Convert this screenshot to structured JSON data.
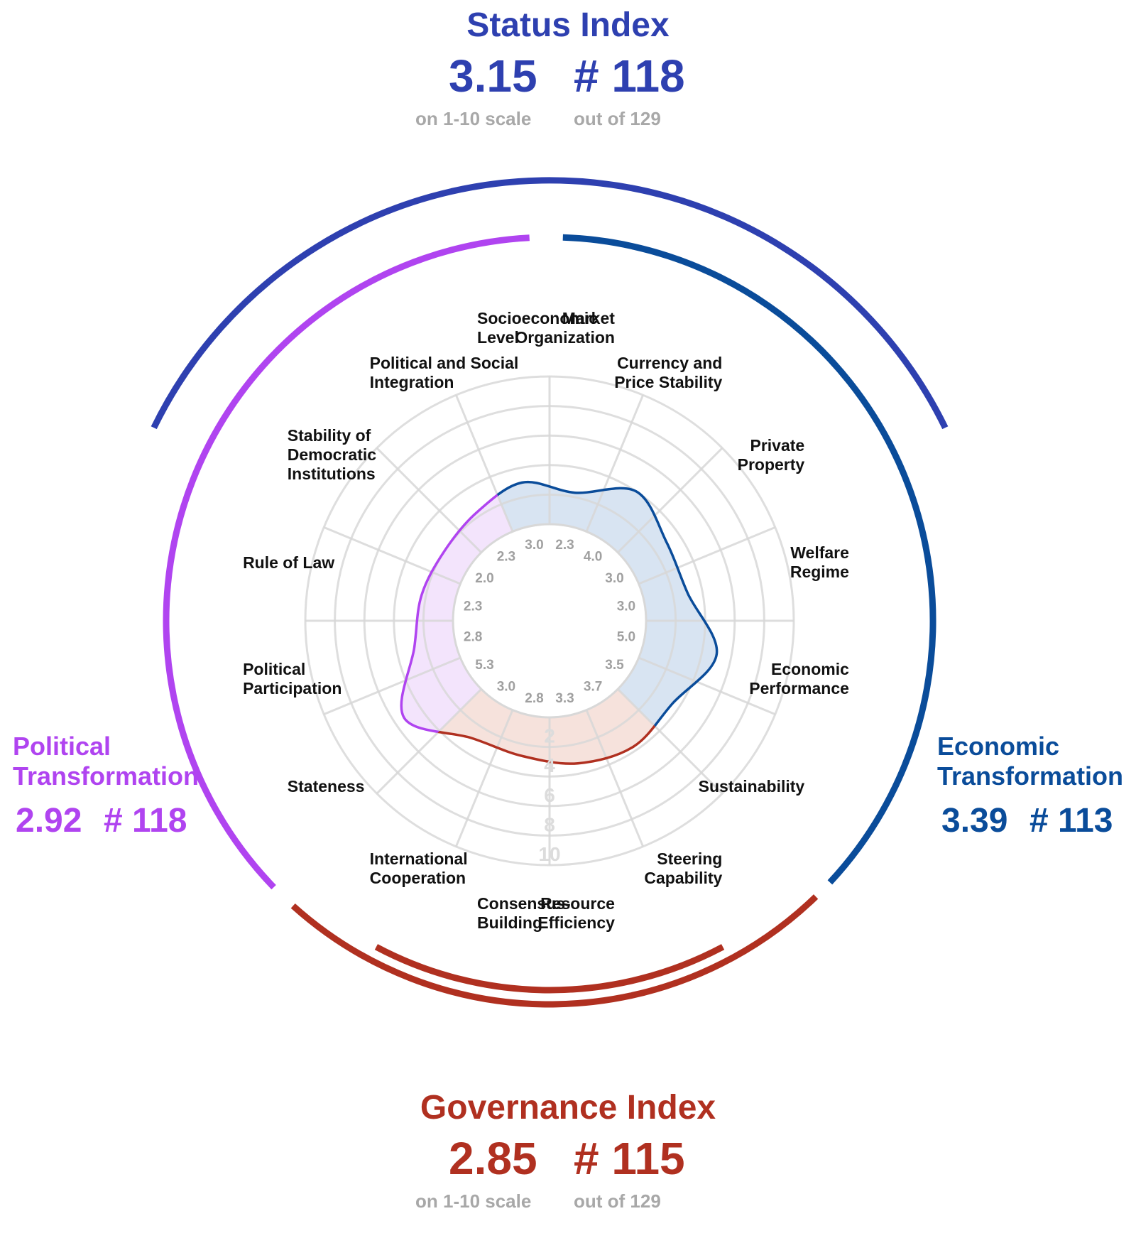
{
  "status_index": {
    "title": "Status Index",
    "score": "3.15",
    "rank": "# 118",
    "score_note": "on 1-10 scale",
    "rank_note": "out of 129",
    "color": "#2e40b0"
  },
  "governance_index": {
    "title": "Governance Index",
    "score": "2.85",
    "rank": "# 115",
    "score_note": "on 1-10 scale",
    "rank_note": "out of 129",
    "color": "#b03020"
  },
  "political_transformation": {
    "title_line1": "Political",
    "title_line2": "Transformation",
    "score": "2.92",
    "rank": "# 118",
    "color": "#b044f0"
  },
  "economic_transformation": {
    "title_line1": "Economic",
    "title_line2": "Transformation",
    "score": "3.39",
    "rank": "# 113",
    "color": "#0a4c9a"
  },
  "chart_data": {
    "type": "radar",
    "rlim": [
      0,
      10
    ],
    "rticks": [
      2,
      4,
      6,
      8,
      10
    ],
    "categories": [
      {
        "label": "Market\nOrganization",
        "value": 2.3,
        "group": "economic"
      },
      {
        "label": "Currency and\nPrice Stability",
        "value": 4.0,
        "group": "economic"
      },
      {
        "label": "Private\nProperty",
        "value": 3.0,
        "group": "economic"
      },
      {
        "label": "Welfare\nRegime",
        "value": 3.0,
        "group": "economic"
      },
      {
        "label": "Economic\nPerformance",
        "value": 5.0,
        "group": "economic"
      },
      {
        "label": "Sustainability",
        "value": 3.5,
        "group": "economic"
      },
      {
        "label": "Steering\nCapability",
        "value": 3.7,
        "group": "governance"
      },
      {
        "label": "Resource\nEfficiency",
        "value": 3.3,
        "group": "governance"
      },
      {
        "label": "Consensus-\nBuilding",
        "value": 2.8,
        "group": "governance"
      },
      {
        "label": "International\nCooperation",
        "value": 3.0,
        "group": "governance"
      },
      {
        "label": "Stateness",
        "value": 5.3,
        "group": "political"
      },
      {
        "label": "Political\nParticipation",
        "value": 2.8,
        "group": "political"
      },
      {
        "label": "Rule of Law",
        "value": 2.3,
        "group": "political"
      },
      {
        "label": "Stability of\nDemocratic\nInstitutions",
        "value": 2.0,
        "group": "political"
      },
      {
        "label": "Political and Social\nIntegration",
        "value": 2.3,
        "group": "political"
      },
      {
        "label": "Socioeconomic\nLevel",
        "value": 3.0,
        "group": "economic"
      }
    ],
    "value_labels": [
      "2.3",
      "4.0",
      "3.0",
      "3.0",
      "5.0",
      "3.5",
      "3.7",
      "3.3",
      "2.8",
      "3.0",
      "5.3",
      "2.8",
      "2.3",
      "2.0",
      "2.3",
      "3.0"
    ],
    "group_colors": {
      "economic": "#0a4c9a",
      "political": "#b044f0",
      "governance": "#b03020"
    },
    "fill_colors": {
      "economic": "#d8e4f2",
      "political": "#f3e4fc",
      "governance": "#f6e2dc"
    },
    "grid": true
  }
}
